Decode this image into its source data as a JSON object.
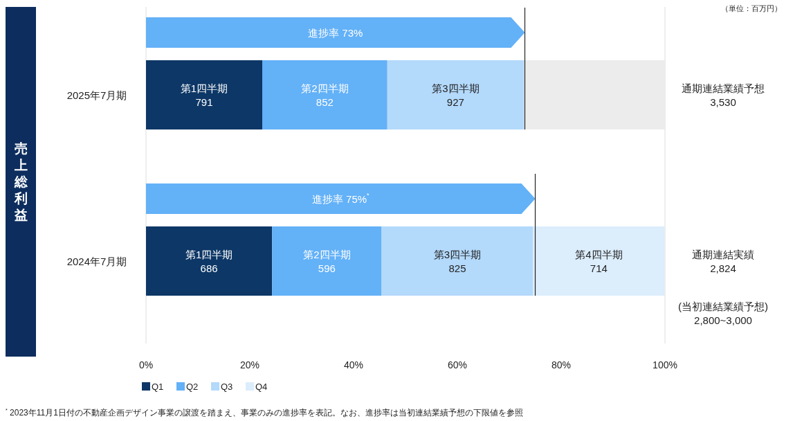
{
  "chart_data": {
    "type": "bar",
    "orientation": "horizontal",
    "stacked": true,
    "ylabel": "売上総利益",
    "categories": [
      null,
      "2025年7月期",
      null,
      "2024年7月期"
    ],
    "series": [
      {
        "color": "#63b1f7",
        "values": [
          73,
          null,
          75,
          null
        ],
        "value_labels": [
          "進捗率 73%",
          null,
          "進捗率 75%$^{*}$",
          null
        ]
      },
      {
        "name": "Q1",
        "color": "#0d3766",
        "values": [
          null,
          22.4,
          null,
          24.3
        ],
        "value_labels": [
          null,
          "第1四半期\n791",
          null,
          "第1四半期\n686"
        ]
      },
      {
        "name": "Q2",
        "color": "#63b1f7",
        "values": [
          null,
          24.1,
          null,
          21.1
        ],
        "value_labels": [
          null,
          "第2四半期\n852",
          null,
          "第2四半期\n596"
        ]
      },
      {
        "name": "Q3",
        "color": "#b3d9fb",
        "values": [
          null,
          26.3,
          null,
          29.2
        ],
        "value_labels": [
          null,
          "第3四半期\n927",
          null,
          "第3四半期\n825"
        ]
      },
      {
        "name": "Q4",
        "color": "#dcedfc",
        "values": [
          null,
          null,
          null,
          25.3
        ],
        "value_labels": [
          null,
          null,
          null,
          "第4四半期\n714"
        ]
      },
      {
        "color": "#ececec",
        "values": [
          null,
          27.3,
          null,
          null
        ]
      }
    ],
    "xlim": [
      0,
      100
    ],
    "xticks": [
      {
        "value": 0,
        "label": "0%"
      },
      {
        "value": 20,
        "label": "20%"
      },
      {
        "value": 40,
        "label": "40%"
      },
      {
        "value": 60,
        "label": "60%"
      },
      {
        "value": 80,
        "label": "80%"
      },
      {
        "value": 100,
        "label": "100%"
      }
    ],
    "grid": false,
    "legend": "bottom left",
    "ref_lines": [
      {
        "axis": "x",
        "value": 73,
        "color": "#222222"
      },
      {
        "axis": "x",
        "value": 75,
        "color": "#222222"
      }
    ],
    "annotations": [
      "通期連結業績予想\n3,530",
      "通期連結実績\n2,824",
      "(当初連結業績予想)\n2,800~3,000",
      "（単位：百万円）",
      "$^{*}$ 2023年11月1日付の不動産企画デザイン事業の譲渡を踏まえ、事業のみの進捗率を表記。なお、進捗率は当初連結業績予想の下限値を参照"
    ]
  }
}
